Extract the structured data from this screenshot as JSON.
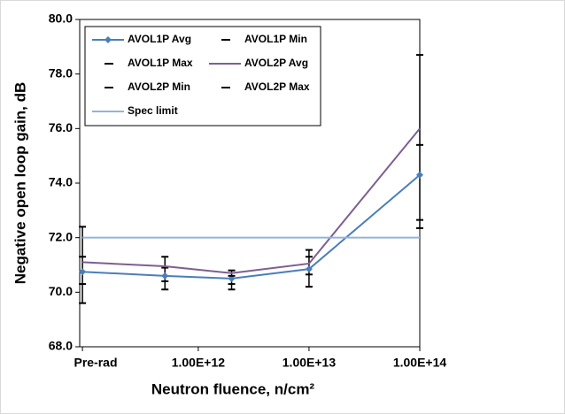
{
  "chart_data": {
    "type": "line",
    "y_label": "Negative open loop gain, dB",
    "x_label": "Neutron fluence, n/cm²",
    "x": [
      90000000000,
      500000000000,
      2000000000000,
      10000000000000,
      100000000000000
    ],
    "xlim": [
      85000000000,
      100000000000000
    ],
    "xscale": "log",
    "xticks": [
      {
        "value": 90000000000,
        "label": "Pre-rad"
      },
      {
        "value": 1000000000000,
        "label": "1.00E+12"
      },
      {
        "value": 10000000000000,
        "label": "1.00E+13"
      },
      {
        "value": 100000000000000,
        "label": "1.00E+14"
      }
    ],
    "ylim": [
      68,
      80
    ],
    "yticks": [
      {
        "value": 68,
        "label": "68.0"
      },
      {
        "value": 70,
        "label": "70.0"
      },
      {
        "value": 72,
        "label": "72.0"
      },
      {
        "value": 74,
        "label": "74.0"
      },
      {
        "value": 76,
        "label": "76.0"
      },
      {
        "value": 78,
        "label": "78.0"
      },
      {
        "value": 80,
        "label": "80.0"
      }
    ],
    "legend": "upper left",
    "series": [
      {
        "name": "AVOL1P Avg",
        "color": "#4a7ebb",
        "marker": "diamond",
        "values": [
          70.75,
          70.6,
          70.5,
          70.85,
          74.3
        ]
      },
      {
        "name": "AVOL1P Min",
        "color": "#000000",
        "marker": "dash",
        "values": [
          69.6,
          70.1,
          70.1,
          70.2,
          72.35
        ]
      },
      {
        "name": "AVOL1P Max",
        "color": "#000000",
        "marker": "dash",
        "values": [
          71.3,
          70.9,
          70.6,
          71.3,
          75.4
        ]
      },
      {
        "name": "AVOL2P Avg",
        "color": "#7d5f8f",
        "marker": "none",
        "values": [
          71.1,
          70.95,
          70.7,
          71.05,
          76.0
        ]
      },
      {
        "name": "AVOL2P Min",
        "color": "#000000",
        "marker": "dash",
        "values": [
          70.3,
          70.4,
          70.3,
          70.65,
          72.65
        ]
      },
      {
        "name": "AVOL2P Max",
        "color": "#000000",
        "marker": "dash",
        "values": [
          72.4,
          71.3,
          70.8,
          71.55,
          78.7
        ]
      },
      {
        "name": "Spec limit",
        "color": "#95b3d7",
        "marker": "none",
        "values": [
          72,
          72,
          72,
          72,
          72
        ]
      }
    ]
  }
}
